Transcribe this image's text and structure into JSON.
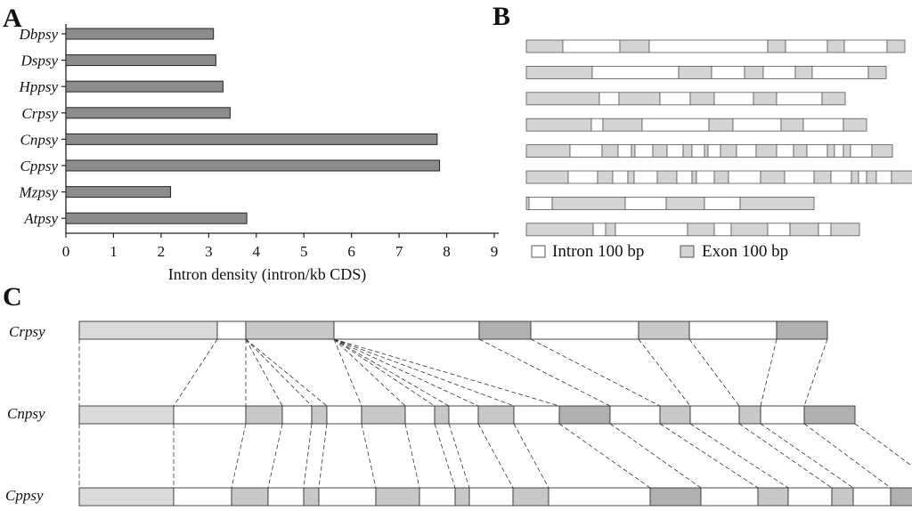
{
  "panels": {
    "a": "A",
    "b": "B",
    "c": "C"
  },
  "colors": {
    "bar": "#8c8c8c",
    "intron": "#ffffff",
    "exon": "#d4d4d4",
    "exon_light": "#dadada",
    "exon_mid": "#c8c8c8",
    "exon_dark": "#b0b0b0",
    "stroke": "#333333"
  },
  "chart_data": [
    {
      "type": "bar",
      "orientation": "horizontal",
      "categories": [
        "Dbpsy",
        "Dspsy",
        "Hppsy",
        "Crpsy",
        "Cnpsy",
        "Cppsy",
        "Mzpsy",
        "Atpsy"
      ],
      "values": [
        3.1,
        3.15,
        3.3,
        3.45,
        7.8,
        7.85,
        2.2,
        3.8
      ],
      "xlabel": "Intron density (intron/kb CDS)",
      "xlim": [
        0,
        9
      ],
      "xticks": [
        "0",
        "1",
        "2",
        "3",
        "4",
        "5",
        "6",
        "7",
        "8",
        "9"
      ],
      "grid": false
    }
  ],
  "panel_b": {
    "legend": {
      "intron": "Intron 100 bp",
      "exon": "Exon 100 bp"
    },
    "rows": [
      {
        "segments": [
          [
            "e",
            41
          ],
          [
            "i",
            64
          ],
          [
            "e",
            33
          ],
          [
            "i",
            133
          ],
          [
            "e",
            20
          ],
          [
            "i",
            47
          ],
          [
            "e",
            19
          ],
          [
            "i",
            48
          ],
          [
            "e",
            20
          ]
        ]
      },
      {
        "segments": [
          [
            "e",
            74
          ],
          [
            "i",
            97
          ],
          [
            "e",
            37
          ],
          [
            "i",
            37
          ],
          [
            "e",
            21
          ],
          [
            "i",
            36
          ],
          [
            "e",
            19
          ],
          [
            "i",
            63
          ],
          [
            "e",
            20
          ]
        ]
      },
      {
        "segments": [
          [
            "e",
            82
          ],
          [
            "i",
            22
          ],
          [
            "e",
            46
          ],
          [
            "i",
            34
          ],
          [
            "e",
            27
          ],
          [
            "i",
            44
          ],
          [
            "e",
            26
          ],
          [
            "i",
            51
          ],
          [
            "e",
            26
          ]
        ]
      },
      {
        "segments": [
          [
            "e",
            73
          ],
          [
            "i",
            13
          ],
          [
            "e",
            44
          ],
          [
            "i",
            75
          ],
          [
            "e",
            27
          ],
          [
            "i",
            54
          ],
          [
            "e",
            25
          ],
          [
            "i",
            45
          ],
          [
            "e",
            26
          ]
        ]
      },
      {
        "segments": [
          [
            "e",
            49
          ],
          [
            "i",
            36
          ],
          [
            "e",
            18
          ],
          [
            "i",
            15
          ],
          [
            "e",
            4
          ],
          [
            "i",
            20
          ],
          [
            "e",
            16
          ],
          [
            "i",
            18
          ],
          [
            "e",
            10
          ],
          [
            "i",
            14
          ],
          [
            "e",
            4
          ],
          [
            "i",
            14
          ],
          [
            "e",
            18
          ],
          [
            "i",
            22
          ],
          [
            "e",
            23
          ],
          [
            "i",
            19
          ],
          [
            "e",
            15
          ],
          [
            "i",
            23
          ],
          [
            "e",
            8
          ],
          [
            "i",
            10
          ],
          [
            "e",
            8
          ],
          [
            "i",
            24
          ],
          [
            "e",
            23
          ]
        ]
      },
      {
        "segments": [
          [
            "e",
            47
          ],
          [
            "i",
            33
          ],
          [
            "e",
            17
          ],
          [
            "i",
            17
          ],
          [
            "e",
            7
          ],
          [
            "i",
            26
          ],
          [
            "e",
            22
          ],
          [
            "i",
            17
          ],
          [
            "e",
            5
          ],
          [
            "i",
            20
          ],
          [
            "e",
            16
          ],
          [
            "i",
            36
          ],
          [
            "e",
            27
          ],
          [
            "i",
            33
          ],
          [
            "e",
            19
          ],
          [
            "i",
            23
          ],
          [
            "e",
            8
          ],
          [
            "i",
            9
          ],
          [
            "e",
            11
          ],
          [
            "i",
            17
          ],
          [
            "e",
            24
          ]
        ]
      },
      {
        "segments": [
          [
            "e",
            3
          ],
          [
            "i",
            26
          ],
          [
            "e",
            82
          ],
          [
            "i",
            46
          ],
          [
            "e",
            43
          ],
          [
            "i",
            40
          ],
          [
            "e",
            83
          ]
        ]
      },
      {
        "segments": [
          [
            "e",
            75
          ],
          [
            "i",
            14
          ],
          [
            "e",
            11
          ],
          [
            "i",
            81
          ],
          [
            "e",
            30
          ],
          [
            "i",
            19
          ],
          [
            "e",
            41
          ],
          [
            "i",
            25
          ],
          [
            "e",
            32
          ],
          [
            "i",
            14
          ],
          [
            "e",
            32
          ]
        ]
      }
    ]
  },
  "panel_c": {
    "labels": [
      "Crpsy",
      "Cnpsy",
      "Cppsy"
    ],
    "rows": [
      {
        "segments": [
          [
            "e",
            155,
            "l"
          ],
          [
            "i",
            32
          ],
          [
            "e",
            99,
            "m"
          ],
          [
            "i",
            163
          ],
          [
            "e",
            58,
            "d"
          ],
          [
            "i",
            121
          ],
          [
            "e",
            57,
            "m"
          ],
          [
            "i",
            98
          ],
          [
            "e",
            57,
            "d"
          ]
        ]
      },
      {
        "segments": [
          [
            "e",
            106,
            "l"
          ],
          [
            "i",
            81
          ],
          [
            "e",
            41,
            "m"
          ],
          [
            "i",
            33
          ],
          [
            "e",
            17,
            "m"
          ],
          [
            "i",
            39
          ],
          [
            "e",
            49,
            "m"
          ],
          [
            "i",
            33
          ],
          [
            "e",
            16,
            "m"
          ],
          [
            "i",
            33
          ],
          [
            "e",
            40,
            "m"
          ],
          [
            "i",
            51
          ],
          [
            "e",
            57,
            "d"
          ],
          [
            "i",
            56
          ],
          [
            "e",
            34,
            "m"
          ],
          [
            "i",
            55
          ],
          [
            "e",
            24,
            "m"
          ],
          [
            "i",
            49
          ],
          [
            "e",
            57,
            "d"
          ]
        ]
      },
      {
        "segments": [
          [
            "e",
            106,
            "l"
          ],
          [
            "i",
            65
          ],
          [
            "e",
            41,
            "m"
          ],
          [
            "i",
            40
          ],
          [
            "e",
            17,
            "m"
          ],
          [
            "i",
            64
          ],
          [
            "e",
            49,
            "m"
          ],
          [
            "i",
            40
          ],
          [
            "e",
            16,
            "m"
          ],
          [
            "i",
            49
          ],
          [
            "e",
            40,
            "m"
          ],
          [
            "i",
            114
          ],
          [
            "e",
            57,
            "d"
          ],
          [
            "i",
            64
          ],
          [
            "e",
            34,
            "m"
          ],
          [
            "i",
            49
          ],
          [
            "e",
            24,
            "m"
          ],
          [
            "i",
            42
          ],
          [
            "e",
            57,
            "d"
          ]
        ]
      }
    ]
  }
}
